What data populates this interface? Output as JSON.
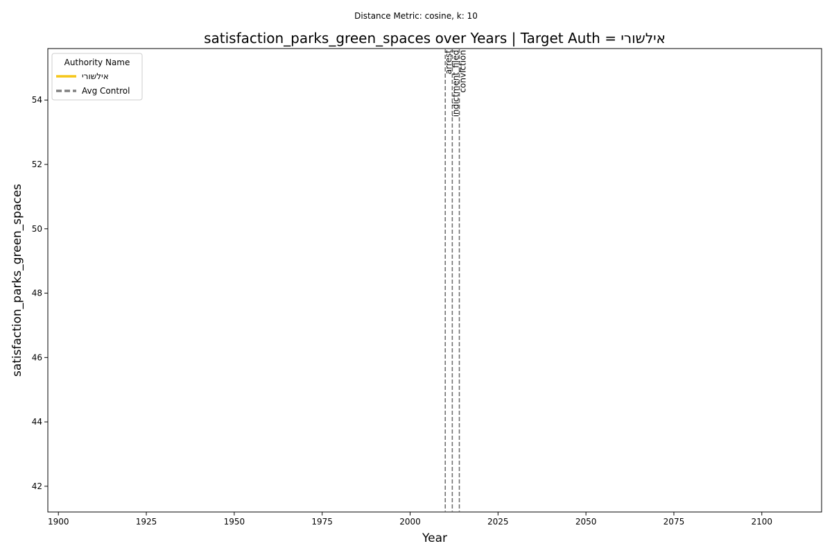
{
  "chart_data": {
    "type": "line",
    "suptitle": "Distance Metric: cosine, k: 10",
    "title": "satisfaction_parks_green_spaces over Years | Target Auth = אילשורי",
    "xlabel": "Year",
    "ylabel": "satisfaction_parks_green_spaces",
    "xlim": [
      1897,
      2117
    ],
    "ylim": [
      41.2,
      55.6
    ],
    "x_ticks": [
      1900,
      1925,
      1950,
      1975,
      2000,
      2025,
      2050,
      2075,
      2100
    ],
    "y_ticks": [
      42,
      44,
      46,
      48,
      50,
      52,
      54
    ],
    "grid": false,
    "legend": {
      "title": "Authority Name",
      "placement": "top-left",
      "entries": [
        {
          "label": "אילשורי",
          "color": "#f5c518",
          "style": "solid"
        },
        {
          "label": "Avg Control",
          "color": "#808080",
          "style": "dashed"
        }
      ]
    },
    "series": [
      {
        "name": "אילשורי",
        "color": "#f5c518",
        "x": [],
        "y": []
      },
      {
        "name": "Avg Control",
        "color": "#808080",
        "x": [],
        "y": []
      }
    ],
    "events": [
      {
        "label": "arrest",
        "year": 2010
      },
      {
        "label": "indictment_filed",
        "year": 2012
      },
      {
        "label": "conviction",
        "year": 2014
      }
    ],
    "event_line_color": "#707070"
  }
}
